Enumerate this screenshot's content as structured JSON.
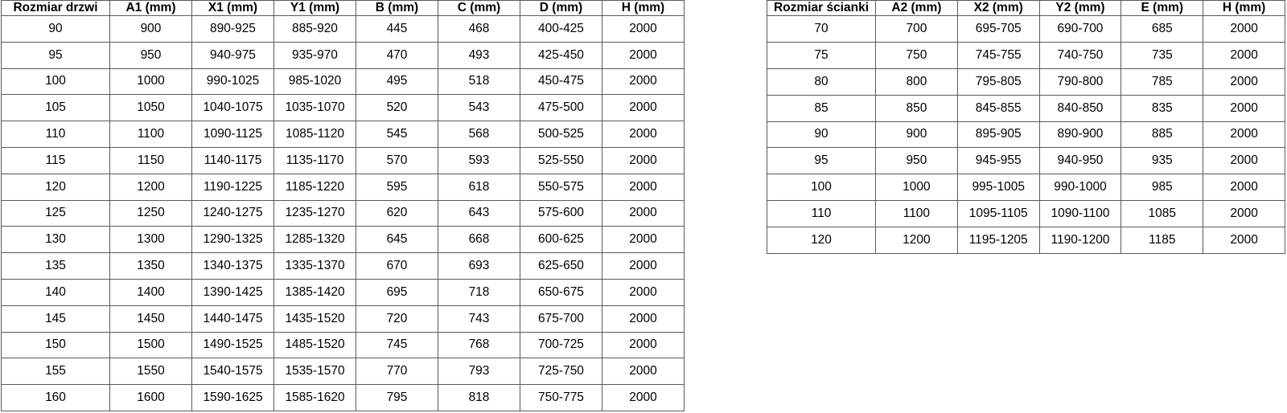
{
  "colors": {
    "background": "#ffffff",
    "grid_border": "#595959",
    "text": "#000000"
  },
  "tables": [
    {
      "id": "door-table",
      "name": "door-size-table",
      "headers": [
        "Rozmiar drzwi",
        "A1 (mm)",
        "X1 (mm)",
        "Y1 (mm)",
        "B (mm)",
        "C (mm)",
        "D (mm)",
        "H (mm)"
      ],
      "rows": [
        [
          "90",
          "900",
          "890-925",
          "885-920",
          "445",
          "468",
          "400-425",
          "2000"
        ],
        [
          "95",
          "950",
          "940-975",
          "935-970",
          "470",
          "493",
          "425-450",
          "2000"
        ],
        [
          "100",
          "1000",
          "990-1025",
          "985-1020",
          "495",
          "518",
          "450-475",
          "2000"
        ],
        [
          "105",
          "1050",
          "1040-1075",
          "1035-1070",
          "520",
          "543",
          "475-500",
          "2000"
        ],
        [
          "110",
          "1100",
          "1090-1125",
          "1085-1120",
          "545",
          "568",
          "500-525",
          "2000"
        ],
        [
          "115",
          "1150",
          "1140-1175",
          "1135-1170",
          "570",
          "593",
          "525-550",
          "2000"
        ],
        [
          "120",
          "1200",
          "1190-1225",
          "1185-1220",
          "595",
          "618",
          "550-575",
          "2000"
        ],
        [
          "125",
          "1250",
          "1240-1275",
          "1235-1270",
          "620",
          "643",
          "575-600",
          "2000"
        ],
        [
          "130",
          "1300",
          "1290-1325",
          "1285-1320",
          "645",
          "668",
          "600-625",
          "2000"
        ],
        [
          "135",
          "1350",
          "1340-1375",
          "1335-1370",
          "670",
          "693",
          "625-650",
          "2000"
        ],
        [
          "140",
          "1400",
          "1390-1425",
          "1385-1420",
          "695",
          "718",
          "650-675",
          "2000"
        ],
        [
          "145",
          "1450",
          "1440-1475",
          "1435-1520",
          "720",
          "743",
          "675-700",
          "2000"
        ],
        [
          "150",
          "1500",
          "1490-1525",
          "1485-1520",
          "745",
          "768",
          "700-725",
          "2000"
        ],
        [
          "155",
          "1550",
          "1540-1575",
          "1535-1570",
          "770",
          "793",
          "725-750",
          "2000"
        ],
        [
          "160",
          "1600",
          "1590-1625",
          "1585-1620",
          "795",
          "818",
          "750-775",
          "2000"
        ]
      ]
    },
    {
      "id": "wall-table",
      "name": "wall-size-table",
      "headers": [
        "Rozmiar ścianki",
        "A2 (mm)",
        "X2 (mm)",
        "Y2 (mm)",
        "E (mm)",
        "H (mm)"
      ],
      "rows": [
        [
          "70",
          "700",
          "695-705",
          "690-700",
          "685",
          "2000"
        ],
        [
          "75",
          "750",
          "745-755",
          "740-750",
          "735",
          "2000"
        ],
        [
          "80",
          "800",
          "795-805",
          "790-800",
          "785",
          "2000"
        ],
        [
          "85",
          "850",
          "845-855",
          "840-850",
          "835",
          "2000"
        ],
        [
          "90",
          "900",
          "895-905",
          "890-900",
          "885",
          "2000"
        ],
        [
          "95",
          "950",
          "945-955",
          "940-950",
          "935",
          "2000"
        ],
        [
          "100",
          "1000",
          "995-1005",
          "990-1000",
          "985",
          "2000"
        ],
        [
          "110",
          "1100",
          "1095-1105",
          "1090-1100",
          "1085",
          "2000"
        ],
        [
          "120",
          "1200",
          "1195-1205",
          "1190-1200",
          "1185",
          "2000"
        ]
      ]
    }
  ]
}
